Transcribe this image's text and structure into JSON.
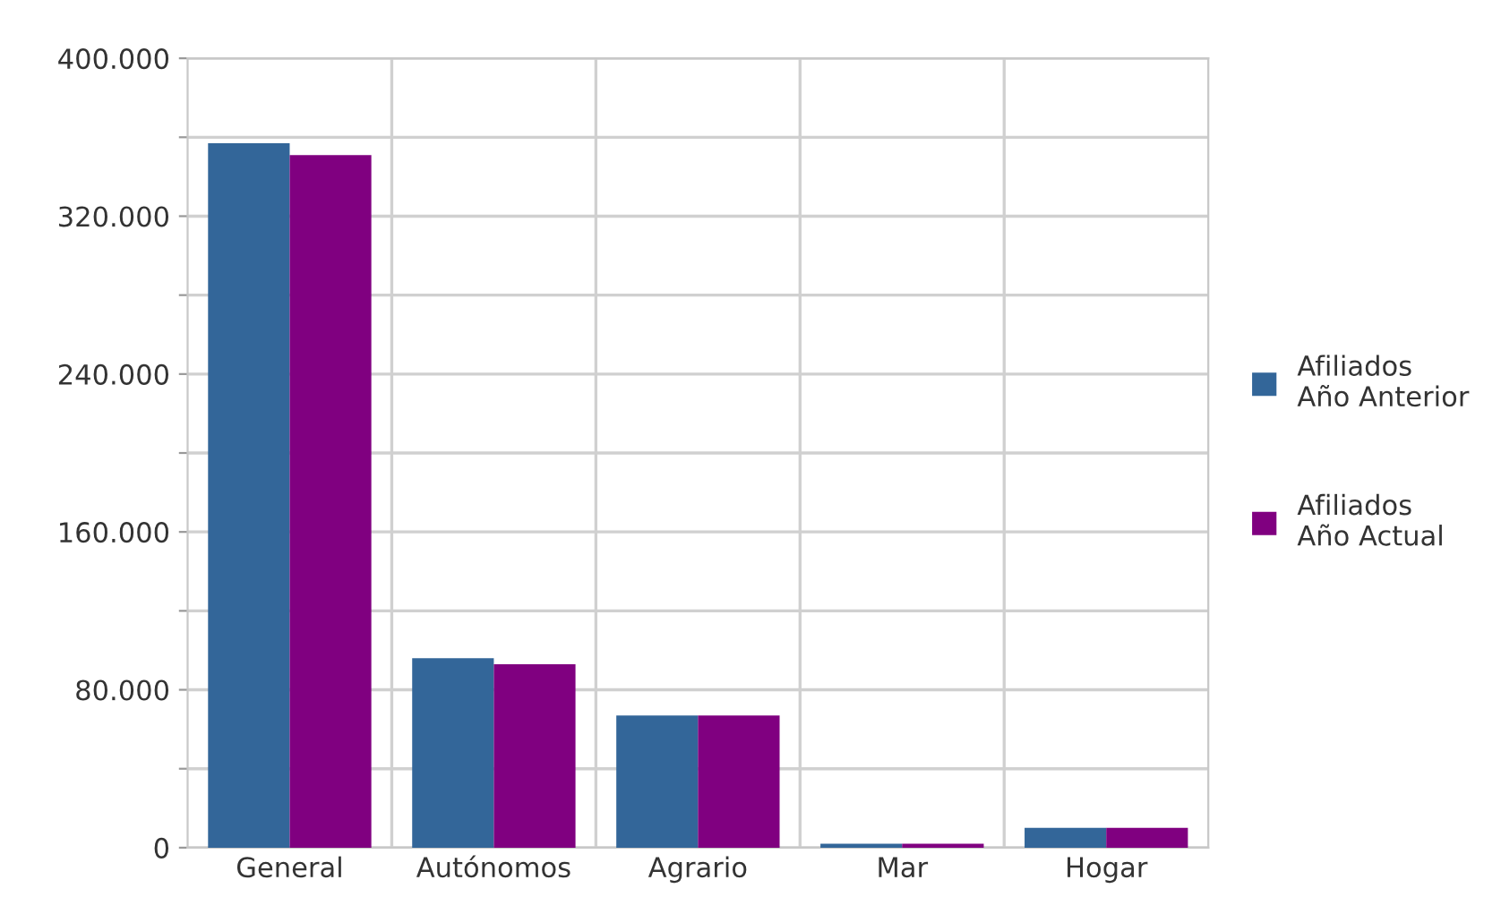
{
  "chart_data": {
    "type": "bar",
    "categories": [
      "General",
      "Autónomos",
      "Agrario",
      "Mar",
      "Hogar"
    ],
    "series": [
      {
        "name": "Afiliados\nAño Anterior",
        "color": "#336699",
        "values": [
          357000,
          96000,
          67000,
          2000,
          10000
        ]
      },
      {
        "name": "Afiliados\nAño Actual",
        "color": "#800080",
        "values": [
          351000,
          93000,
          67000,
          2000,
          10000
        ]
      }
    ],
    "ylim": [
      0,
      400000
    ],
    "yticks": [
      {
        "value": 0,
        "label": "0"
      },
      {
        "value": 40000,
        "label": null
      },
      {
        "value": 80000,
        "label": "80.000"
      },
      {
        "value": 120000,
        "label": null
      },
      {
        "value": 160000,
        "label": "160.000"
      },
      {
        "value": 200000,
        "label": null
      },
      {
        "value": 240000,
        "label": "240.000"
      },
      {
        "value": 280000,
        "label": null
      },
      {
        "value": 320000,
        "label": "320.000"
      },
      {
        "value": 360000,
        "label": null
      },
      {
        "value": 400000,
        "label": "400.000"
      }
    ],
    "grid": true,
    "legend": "right"
  }
}
